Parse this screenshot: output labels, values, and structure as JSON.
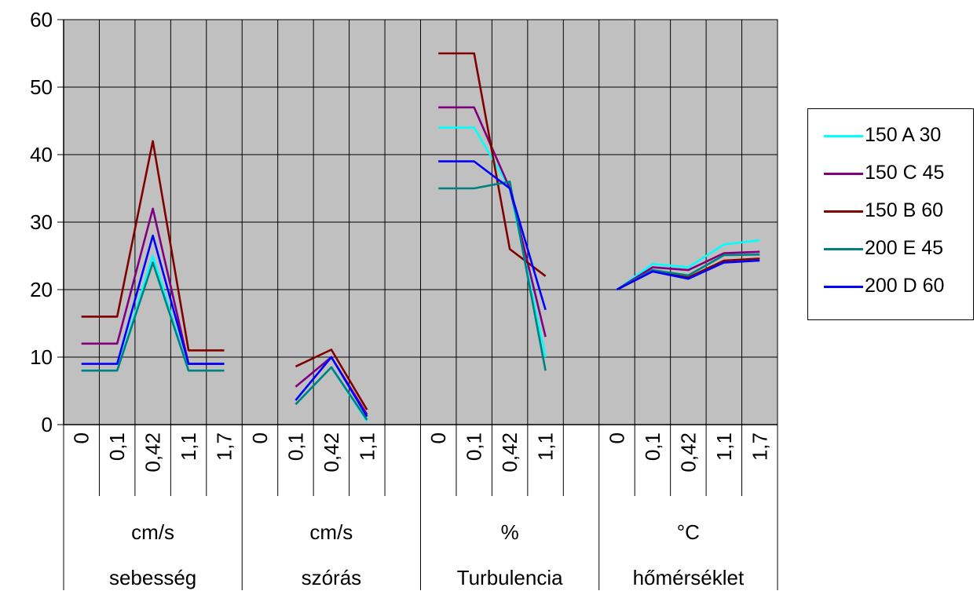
{
  "chart_data": {
    "type": "line",
    "y_ticks": [
      "0",
      "10",
      "20",
      "30",
      "40",
      "50",
      "60"
    ],
    "ylim": [
      0,
      60
    ],
    "grid": true,
    "plot_background": "#c0c0c0",
    "legend_position": "right",
    "groups": [
      {
        "unit": "cm/s",
        "name": "sebesség",
        "categories": [
          "0",
          "0,1",
          "0,42",
          "1,1",
          "1,7"
        ]
      },
      {
        "unit": "cm/s",
        "name": "szórás",
        "categories": [
          "0",
          "0,1",
          "0,42",
          "1,1",
          ""
        ]
      },
      {
        "unit": "%",
        "name": "Turbulencia",
        "categories": [
          "0",
          "0,1",
          "0,42",
          "1,1",
          ""
        ]
      },
      {
        "unit": "°C",
        "name": "hőmérséklet",
        "categories": [
          "0",
          "0,1",
          "0,42",
          "1,1",
          "1,7"
        ]
      }
    ],
    "series": [
      {
        "name": "150 A 30",
        "color": "#00ffff",
        "values": [
          [
            8,
            8,
            25,
            8,
            8
          ],
          [
            null,
            3,
            8.5,
            0.5,
            null
          ],
          [
            44,
            44,
            35,
            10,
            null
          ],
          [
            20,
            23.8,
            23.3,
            26.7,
            27.3
          ]
        ]
      },
      {
        "name": "150 C 45",
        "color": "#800080",
        "values": [
          [
            12,
            12,
            32,
            9,
            9
          ],
          [
            null,
            5.6,
            10,
            1.5,
            null
          ],
          [
            47,
            47,
            35,
            13,
            null
          ],
          [
            20,
            23.3,
            22.9,
            25.4,
            25.6
          ]
        ]
      },
      {
        "name": "150 B 60",
        "color": "#800000",
        "values": [
          [
            16,
            16,
            42,
            11,
            11
          ],
          [
            null,
            8.6,
            11.1,
            2.2,
            null
          ],
          [
            55,
            55,
            26,
            22,
            null
          ],
          [
            20,
            22.7,
            21.8,
            24.3,
            24.6
          ]
        ]
      },
      {
        "name": "200 E 45",
        "color": "#008080",
        "values": [
          [
            8,
            8,
            24,
            8,
            8
          ],
          [
            null,
            3,
            8.5,
            0.7,
            null
          ],
          [
            35,
            35,
            36,
            8,
            null
          ],
          [
            20,
            22.9,
            22.1,
            25.1,
            25.2
          ]
        ]
      },
      {
        "name": "200 D 60",
        "color": "#0000ff",
        "values": [
          [
            9,
            9,
            28,
            9,
            9
          ],
          [
            null,
            3.6,
            10,
            1.2,
            null
          ],
          [
            39,
            39,
            35,
            17,
            null
          ],
          [
            20,
            22.7,
            21.6,
            24,
            24.3
          ]
        ]
      }
    ]
  }
}
